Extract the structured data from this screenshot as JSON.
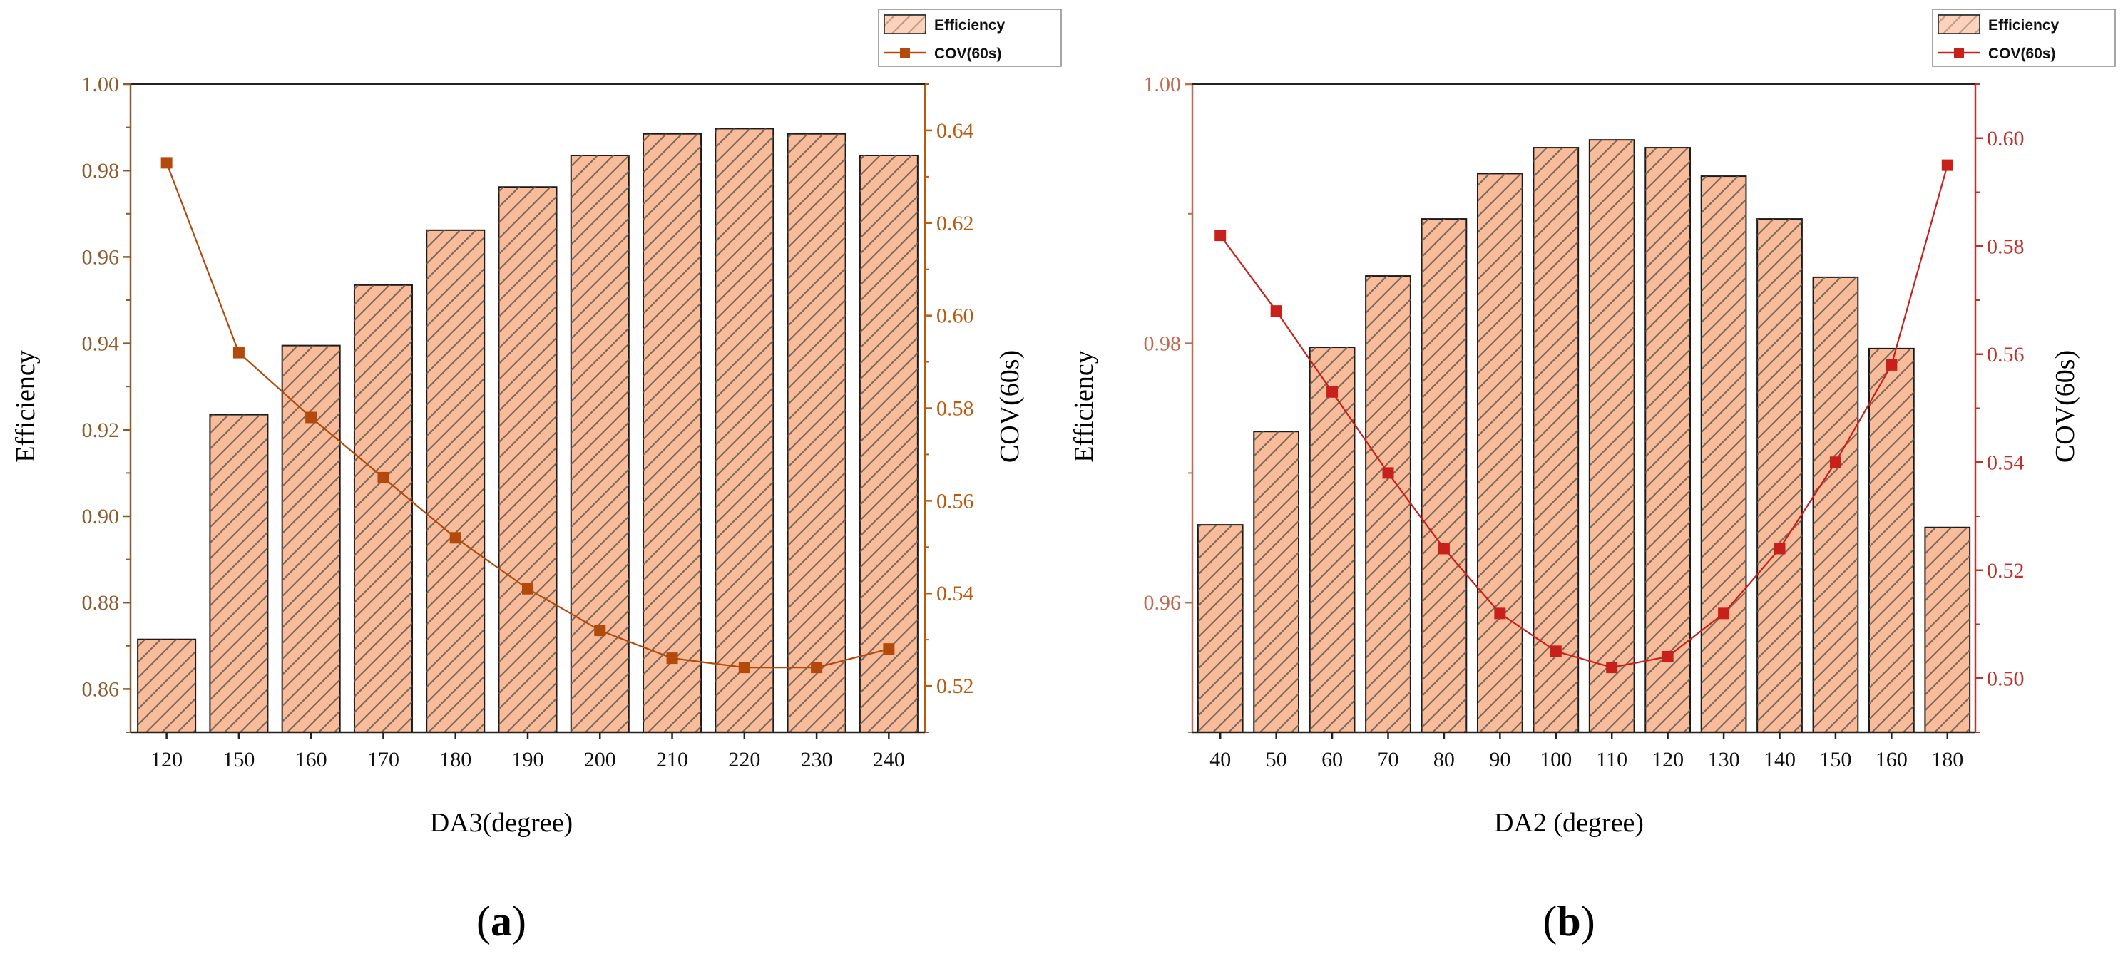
{
  "colors": {
    "bar_fill": "#f9bc9a",
    "bar_stroke": "#1a1a1a",
    "hatch": "#6b5a50",
    "left_axis_a": "#8c5a2b",
    "right_axis_a": "#b85a10",
    "line_a": "#b34a0c",
    "left_axis_b": "#c06a50",
    "right_axis_b": "#c0302a",
    "line_b": "#c8201a"
  },
  "chart_data": [
    {
      "type": "bar",
      "panel_label": "(a)",
      "panel_letter": "a",
      "xlabel": "DA3(degree)",
      "ylabel": "Efficiency",
      "y2label": "COV(60s)",
      "categories": [
        "120",
        "150",
        "160",
        "170",
        "180",
        "190",
        "200",
        "210",
        "220",
        "230",
        "240"
      ],
      "ylim": [
        0.85,
        1.0
      ],
      "yticks": [
        "0.86",
        "0.88",
        "0.90",
        "0.92",
        "0.94",
        "0.96",
        "0.98",
        "1.00"
      ],
      "y2lim": [
        0.51,
        0.65
      ],
      "y2ticks": [
        "0.52",
        "0.54",
        "0.56",
        "0.58",
        "0.60",
        "0.62",
        "0.64"
      ],
      "legend": [
        "Efficiency",
        "COV(60s)"
      ],
      "legend_position": "top-right",
      "series": [
        {
          "name": "Efficiency",
          "type": "bar",
          "axis": "left",
          "values": [
            0.8715,
            0.9235,
            0.9395,
            0.9535,
            0.9662,
            0.9762,
            0.9835,
            0.9885,
            0.9897,
            0.9885,
            0.9835
          ]
        },
        {
          "name": "COV(60s)",
          "type": "line",
          "axis": "right",
          "values": [
            0.633,
            0.592,
            0.578,
            0.565,
            0.552,
            0.541,
            0.532,
            0.526,
            0.524,
            0.524,
            0.528
          ]
        }
      ]
    },
    {
      "type": "bar",
      "panel_label": "(b)",
      "panel_letter": "b",
      "xlabel": "DA2 (degree)",
      "ylabel": "Efficiency",
      "y2label": "COV(60s)",
      "categories": [
        "40",
        "50",
        "60",
        "70",
        "80",
        "90",
        "100",
        "110",
        "120",
        "130",
        "140",
        "150",
        "160",
        "180"
      ],
      "ylim": [
        0.95,
        1.0
      ],
      "yticks": [
        "0.96",
        "0.98",
        "1.00"
      ],
      "y2lim": [
        0.49,
        0.61
      ],
      "y2ticks": [
        "0.50",
        "0.52",
        "0.54",
        "0.56",
        "0.58",
        "0.60"
      ],
      "legend": [
        "Efficiency",
        "COV(60s)"
      ],
      "legend_position": "top-right",
      "series": [
        {
          "name": "Efficiency",
          "type": "bar",
          "axis": "left",
          "values": [
            0.966,
            0.9732,
            0.9797,
            0.9852,
            0.9896,
            0.9931,
            0.9951,
            0.9957,
            0.9951,
            0.9929,
            0.9896,
            0.9851,
            0.9796,
            0.9658
          ]
        },
        {
          "name": "COV(60s)",
          "type": "line",
          "axis": "right",
          "values": [
            0.582,
            0.568,
            0.553,
            0.538,
            0.524,
            0.512,
            0.505,
            0.502,
            0.504,
            0.512,
            0.524,
            0.54,
            0.558,
            0.595
          ]
        }
      ]
    }
  ]
}
